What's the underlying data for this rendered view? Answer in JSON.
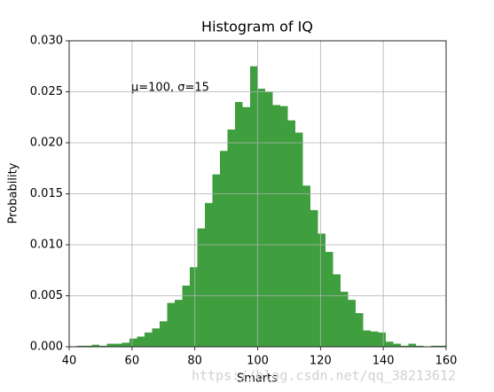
{
  "chart_data": {
    "type": "histogram",
    "title": "Histogram of IQ",
    "x_label": "Smarts",
    "y_label": "Probability",
    "annotation": "μ=100,  σ=15",
    "watermark": "https://blog.csdn.net/qq_38213612",
    "color": "#3f9f3f",
    "grid": true,
    "bins": [
      40,
      42.4,
      44.8,
      47.2,
      49.6,
      52,
      54.4,
      56.8,
      59.2,
      61.6,
      64,
      66.4,
      68.8,
      71.2,
      73.6,
      76,
      78.4,
      80.8,
      83.2,
      85.6,
      88,
      90.4,
      92.8,
      95.2,
      97.6,
      100,
      102.4,
      104.8,
      107.2,
      109.6,
      112,
      114.4,
      116.8,
      119.2,
      121.6,
      124,
      126.4,
      128.8,
      131.2,
      133.6,
      136,
      138.4,
      140.8,
      143.2,
      145.6,
      148,
      150.4,
      152.8,
      155.2,
      157.6,
      160
    ],
    "values": [
      0,
      0.0001,
      0.0001,
      0.0002,
      0.0001,
      0.0003,
      0.0003,
      0.0004,
      0.0008,
      0.001,
      0.0014,
      0.0018,
      0.0025,
      0.0043,
      0.0046,
      0.006,
      0.0078,
      0.0116,
      0.0141,
      0.0169,
      0.0192,
      0.0213,
      0.024,
      0.0235,
      0.0275,
      0.0253,
      0.025,
      0.0237,
      0.0236,
      0.0222,
      0.021,
      0.0158,
      0.0134,
      0.0111,
      0.0093,
      0.0071,
      0.0054,
      0.0046,
      0.0033,
      0.0016,
      0.0015,
      0.0014,
      0.0005,
      0.0003,
      0.0001,
      0.0003,
      0.0001,
      0,
      0.0001,
      0.0001
    ],
    "xlim": [
      40,
      160
    ],
    "xticks": [
      40,
      60,
      80,
      100,
      120,
      140,
      160
    ],
    "ylim": [
      0,
      0.03
    ],
    "yticks": [
      {
        "value": 0,
        "label": "0.000"
      },
      {
        "value": 0.005,
        "label": "0.005"
      },
      {
        "value": 0.01,
        "label": "0.010"
      },
      {
        "value": 0.015,
        "label": "0.015"
      },
      {
        "value": 0.02,
        "label": "0.020"
      },
      {
        "value": 0.025,
        "label": "0.025"
      },
      {
        "value": 0.03,
        "label": "0.030"
      }
    ]
  }
}
